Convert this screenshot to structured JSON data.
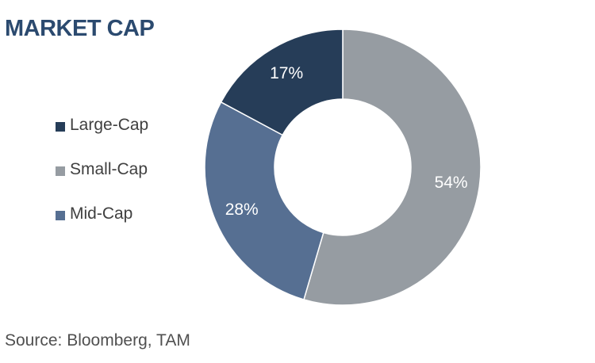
{
  "chart_data": {
    "type": "pie",
    "title": "MARKET CAP",
    "slices": [
      {
        "name": "Large-Cap",
        "value": 17,
        "label": "17%",
        "color": "#263d58"
      },
      {
        "name": "Small-Cap",
        "value": 54,
        "label": "54%",
        "color": "#969ca2"
      },
      {
        "name": "Mid-Cap",
        "value": 28,
        "label": "28%",
        "color": "#566f92"
      }
    ],
    "legend_order": [
      0,
      1,
      2
    ],
    "legend_placement": "left",
    "donut": true
  },
  "source": "Source: Bloomberg, TAM"
}
